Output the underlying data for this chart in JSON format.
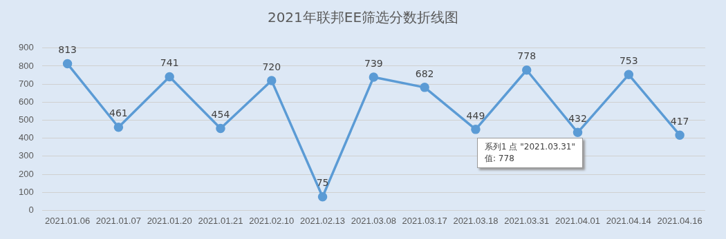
{
  "chart_data": {
    "type": "line",
    "title": "2021年联邦EE筛选分数折线图",
    "categories": [
      "2021.01.06",
      "2021.01.07",
      "2021.01.20",
      "2021.01.21",
      "2021.02.10",
      "2021.02.13",
      "2021.03.08",
      "2021.03.17",
      "2021.03.18",
      "2021.03.31",
      "2021.04.01",
      "2021.04.14",
      "2021.04.16"
    ],
    "series": [
      {
        "color": "#5b9bd5",
        "values": [
          813,
          461,
          741,
          454,
          720,
          75,
          739,
          682,
          449,
          778,
          432,
          753,
          417
        ]
      }
    ],
    "ylim": [
      0,
      900
    ],
    "yticks": [
      0,
      100,
      200,
      300,
      400,
      500,
      600,
      700,
      800,
      900
    ],
    "grid": "y",
    "legend": false,
    "marker": "circle",
    "line_style": "solid",
    "data_labels": true,
    "annotations": [
      "系列1 点 \"2021.03.31\"\n值: 778"
    ]
  }
}
